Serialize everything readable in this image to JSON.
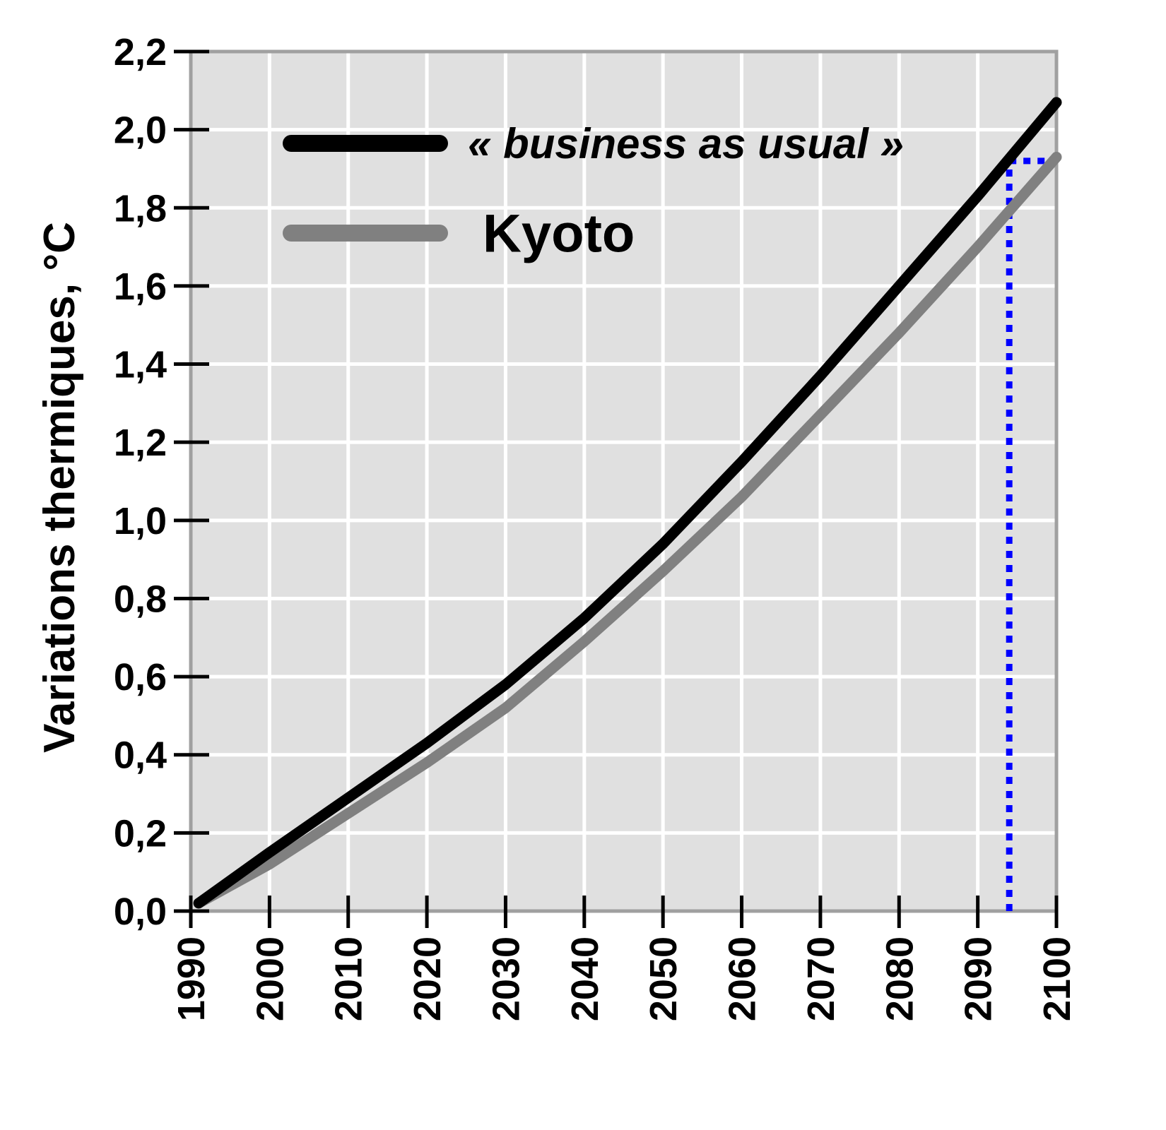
{
  "chart_data": {
    "type": "line",
    "title": "",
    "xlabel": "",
    "ylabel": "Variations thermiques, °C",
    "xlim": [
      1990,
      2100
    ],
    "ylim": [
      0,
      2.2
    ],
    "grid": true,
    "legend_position": "top-left",
    "x_tick_labels": [
      "1990",
      "2000",
      "2010",
      "2020",
      "2030",
      "2040",
      "2050",
      "2060",
      "2070",
      "2080",
      "2090",
      "2100"
    ],
    "y_tick_labels": [
      "0,0",
      "0,2",
      "0,4",
      "0,6",
      "0,8",
      "1,0",
      "1,2",
      "1,4",
      "1,6",
      "1,8",
      "2,0",
      "2,2"
    ],
    "x": [
      1991,
      2000,
      2010,
      2020,
      2030,
      2040,
      2050,
      2060,
      2070,
      2080,
      2090,
      2100
    ],
    "series": [
      {
        "name": "« business as usual »",
        "color": "#000000",
        "values": [
          0.02,
          0.15,
          0.29,
          0.43,
          0.58,
          0.75,
          0.94,
          1.15,
          1.37,
          1.6,
          1.83,
          2.07
        ]
      },
      {
        "name": "Kyoto",
        "color": "#808080",
        "values": [
          0.02,
          0.12,
          0.25,
          0.38,
          0.52,
          0.69,
          0.87,
          1.06,
          1.27,
          1.48,
          1.7,
          1.93
        ]
      }
    ],
    "reference_lines": {
      "color": "#0000ff",
      "x": 2094,
      "y": 1.92
    }
  }
}
